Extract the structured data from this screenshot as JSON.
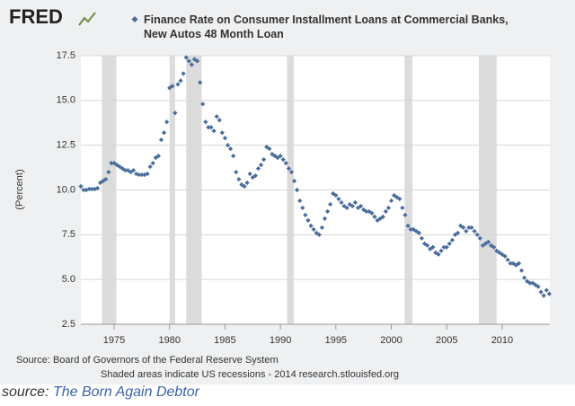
{
  "logo": "FRED",
  "chart_data": {
    "type": "scatter",
    "series": [
      {
        "name": "Finance Rate on Consumer Installment Loans at Commercial Banks, New Autos 48 Month Loan",
        "color": "#4a6d9c",
        "x": [
          1972,
          1972.25,
          1972.5,
          1972.75,
          1973,
          1973.25,
          1973.5,
          1973.75,
          1974,
          1974.25,
          1974.5,
          1974.75,
          1975,
          1975.25,
          1975.5,
          1975.75,
          1976,
          1976.25,
          1976.5,
          1976.75,
          1977,
          1977.25,
          1977.5,
          1977.75,
          1978,
          1978.25,
          1978.5,
          1978.75,
          1979,
          1979.25,
          1979.5,
          1979.75,
          1980,
          1980.25,
          1980.5,
          1980.75,
          1981,
          1981.25,
          1981.5,
          1981.75,
          1982,
          1982.25,
          1982.5,
          1982.75,
          1983,
          1983.25,
          1983.5,
          1983.75,
          1984,
          1984.25,
          1984.5,
          1984.75,
          1985,
          1985.25,
          1985.5,
          1985.75,
          1986,
          1986.25,
          1986.5,
          1986.75,
          1987,
          1987.25,
          1987.5,
          1987.75,
          1988,
          1988.25,
          1988.5,
          1988.75,
          1989,
          1989.25,
          1989.5,
          1989.75,
          1990,
          1990.25,
          1990.5,
          1990.75,
          1991,
          1991.25,
          1991.5,
          1991.75,
          1992,
          1992.25,
          1992.5,
          1992.75,
          1993,
          1993.25,
          1993.5,
          1993.75,
          1994,
          1994.25,
          1994.5,
          1994.75,
          1995,
          1995.25,
          1995.5,
          1995.75,
          1996,
          1996.25,
          1996.5,
          1996.75,
          1997,
          1997.25,
          1997.5,
          1997.75,
          1998,
          1998.25,
          1998.5,
          1998.75,
          1999,
          1999.25,
          1999.5,
          1999.75,
          2000,
          2000.25,
          2000.5,
          2000.75,
          2001,
          2001.25,
          2001.5,
          2001.75,
          2002,
          2002.25,
          2002.5,
          2002.75,
          2003,
          2003.25,
          2003.5,
          2003.75,
          2004,
          2004.25,
          2004.5,
          2004.75,
          2005,
          2005.25,
          2005.5,
          2005.75,
          2006,
          2006.25,
          2006.5,
          2006.75,
          2007,
          2007.25,
          2007.5,
          2007.75,
          2008,
          2008.25,
          2008.5,
          2008.75,
          2009,
          2009.25,
          2009.5,
          2009.75,
          2010,
          2010.25,
          2010.5,
          2010.75,
          2011,
          2011.25,
          2011.5,
          2011.75,
          2012,
          2012.25,
          2012.5,
          2012.75,
          2013,
          2013.25,
          2013.5,
          2013.75,
          2014,
          2014.25
        ],
        "values": [
          10.2,
          10.0,
          10.0,
          10.05,
          10.05,
          10.05,
          10.1,
          10.4,
          10.5,
          10.6,
          11.0,
          11.5,
          11.5,
          11.4,
          11.3,
          11.2,
          11.1,
          11.1,
          11.0,
          11.1,
          10.9,
          10.85,
          10.85,
          10.85,
          10.9,
          11.3,
          11.5,
          11.8,
          11.9,
          12.8,
          13.2,
          13.8,
          15.7,
          15.8,
          14.3,
          15.9,
          16.1,
          16.5,
          17.4,
          17.2,
          17.0,
          17.3,
          17.2,
          16.0,
          14.8,
          13.8,
          13.5,
          13.5,
          13.3,
          14.1,
          13.9,
          13.2,
          12.9,
          12.5,
          12.3,
          11.9,
          11.0,
          10.6,
          10.3,
          10.2,
          10.4,
          10.9,
          10.7,
          10.8,
          11.2,
          11.4,
          11.7,
          12.4,
          12.3,
          12.0,
          11.9,
          11.8,
          11.9,
          11.7,
          11.5,
          11.2,
          11.0,
          10.5,
          10.0,
          9.4,
          9.0,
          8.6,
          8.3,
          8.0,
          7.8,
          7.6,
          7.5,
          7.9,
          8.4,
          8.8,
          9.2,
          9.8,
          9.7,
          9.5,
          9.3,
          9.1,
          9.0,
          9.2,
          9.1,
          9.3,
          9.0,
          9.1,
          8.9,
          8.8,
          8.8,
          8.7,
          8.5,
          8.3,
          8.4,
          8.5,
          8.8,
          9.0,
          9.4,
          9.7,
          9.6,
          9.5,
          9.0,
          8.6,
          8.0,
          7.8,
          7.8,
          7.7,
          7.6,
          7.3,
          7.0,
          6.9,
          6.7,
          6.8,
          6.5,
          6.4,
          6.6,
          6.8,
          6.8,
          7.0,
          7.2,
          7.5,
          7.6,
          8.0,
          7.9,
          7.7,
          7.9,
          7.9,
          7.7,
          7.5,
          7.3,
          6.9,
          7.0,
          7.1,
          6.9,
          6.8,
          6.6,
          6.5,
          6.4,
          6.3,
          6.1,
          5.9,
          5.9,
          5.8,
          5.9,
          5.5,
          5.1,
          4.9,
          4.8,
          4.8,
          4.7,
          4.6,
          4.3,
          4.1,
          4.4,
          4.2
        ]
      }
    ],
    "recessions": [
      [
        1973.9,
        1975.2
      ],
      [
        1980.0,
        1980.5
      ],
      [
        1981.5,
        1982.9
      ],
      [
        1990.6,
        1991.2
      ],
      [
        2001.2,
        2001.9
      ],
      [
        2007.9,
        2009.5
      ]
    ],
    "recession_color": "#dcdcdc",
    "xlim": [
      1972,
      2014.3
    ],
    "xticks": [
      1975,
      1980,
      1985,
      1990,
      1995,
      2000,
      2005,
      2010
    ],
    "ylim": [
      2.5,
      17.5
    ],
    "yticks": [
      2.5,
      {
        "value": 5,
        "label": "5.0"
      },
      7.5,
      {
        "value": 10,
        "label": "10.0"
      },
      12.5,
      {
        "value": 15,
        "label": "15.0"
      },
      17.5
    ],
    "ylabel": "(Percent)",
    "grid": true,
    "source": "Source: Board of Governors of the Federal Reserve System",
    "note": "Shaded areas indicate US recessions - 2014 research.stlouisfed.org"
  },
  "caption": {
    "prefix": "source:",
    "link": "The Born Again Debtor"
  }
}
